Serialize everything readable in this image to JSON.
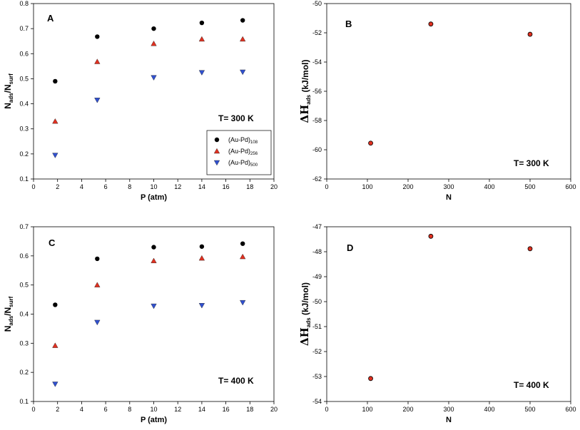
{
  "colors": {
    "series_108": "#000000",
    "series_256": "#e03020",
    "series_500": "#3050d0"
  },
  "chart_data": [
    {
      "panel": "A",
      "type": "scatter",
      "xlabel": "P (atm)",
      "ylabel": {
        "main": "N",
        "sub1": "ads",
        "slash": "/N",
        "sub2": "surf"
      },
      "annotation": "T= 300 K",
      "xlim": [
        0,
        20
      ],
      "ylim": [
        0.1,
        0.8
      ],
      "xticks": [
        "0",
        "2",
        "4",
        "6",
        "8",
        "10",
        "12",
        "14",
        "16",
        "18",
        "20"
      ],
      "yticks": [
        "0.1",
        "0.2",
        "0.3",
        "0.4",
        "0.5",
        "0.6",
        "0.7",
        "0.8"
      ],
      "legend": [
        {
          "base": "(Au-Pd)",
          "sub": "108"
        },
        {
          "base": "(Au-Pd)",
          "sub": "256"
        },
        {
          "base": "(Au-Pd)",
          "sub": "500"
        }
      ],
      "series": [
        {
          "x": [
            1.8,
            5.3,
            10,
            14,
            17.4
          ],
          "y": [
            0.49,
            0.668,
            0.7,
            0.723,
            0.733
          ]
        },
        {
          "x": [
            1.8,
            5.3,
            10,
            14,
            17.4
          ],
          "y": [
            0.33,
            0.568,
            0.64,
            0.658,
            0.658
          ]
        },
        {
          "x": [
            1.8,
            5.3,
            10,
            14,
            17.4
          ],
          "y": [
            0.195,
            0.415,
            0.505,
            0.525,
            0.527
          ]
        }
      ]
    },
    {
      "panel": "B",
      "type": "scatter",
      "xlabel": "N",
      "ylabel": {
        "main": "ΔH",
        "sub1": "ads",
        "slash": " (kJ/mol)",
        "sub2": ""
      },
      "annotation": "T= 300 K",
      "xlim": [
        0,
        600
      ],
      "ylim": [
        -62,
        -50
      ],
      "xticks": [
        "0",
        "100",
        "200",
        "300",
        "400",
        "500",
        "600"
      ],
      "yticks": [
        "-62",
        "-60",
        "-58",
        "-56",
        "-54",
        "-52",
        "-50"
      ],
      "series": [
        {
          "x": [
            108,
            256,
            500
          ],
          "y": [
            -59.55,
            -51.4,
            -52.1
          ]
        }
      ]
    },
    {
      "panel": "C",
      "type": "scatter",
      "xlabel": "P (atm)",
      "ylabel": {
        "main": "N",
        "sub1": "ads",
        "slash": "/N",
        "sub2": "surf"
      },
      "annotation": "T= 400 K",
      "xlim": [
        0,
        20
      ],
      "ylim": [
        0.1,
        0.7
      ],
      "xticks": [
        "0",
        "2",
        "4",
        "6",
        "8",
        "10",
        "12",
        "14",
        "16",
        "18",
        "20"
      ],
      "yticks": [
        "0.1",
        "0.2",
        "0.3",
        "0.4",
        "0.5",
        "0.6",
        "0.7"
      ],
      "series": [
        {
          "x": [
            1.8,
            5.3,
            10,
            14,
            17.4
          ],
          "y": [
            0.432,
            0.59,
            0.63,
            0.632,
            0.642
          ]
        },
        {
          "x": [
            1.8,
            5.3,
            10,
            14,
            17.4
          ],
          "y": [
            0.292,
            0.5,
            0.583,
            0.592,
            0.597
          ]
        },
        {
          "x": [
            1.8,
            5.3,
            10,
            14,
            17.4
          ],
          "y": [
            0.16,
            0.372,
            0.428,
            0.43,
            0.44
          ]
        }
      ]
    },
    {
      "panel": "D",
      "type": "scatter",
      "xlabel": "N",
      "ylabel": {
        "main": "ΔH",
        "sub1": "ads",
        "slash": " (kJ/mol)",
        "sub2": ""
      },
      "annotation": "T= 400 K",
      "xlim": [
        0,
        600
      ],
      "ylim": [
        -54,
        -47
      ],
      "xticks": [
        "0",
        "100",
        "200",
        "300",
        "400",
        "500",
        "600"
      ],
      "yticks": [
        "-54",
        "-53",
        "-52",
        "-51",
        "-50",
        "-49",
        "-48",
        "-47"
      ],
      "series": [
        {
          "x": [
            108,
            256,
            500
          ],
          "y": [
            -53.08,
            -47.38,
            -47.88
          ]
        }
      ]
    }
  ]
}
